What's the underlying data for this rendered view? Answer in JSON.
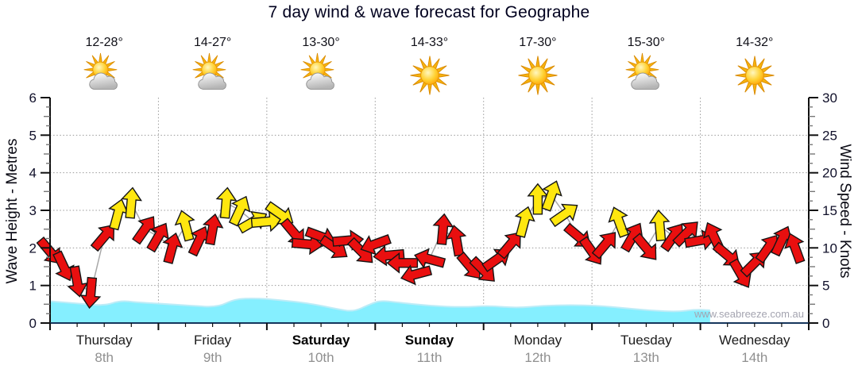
{
  "watermark": {
    "text": "www.seabreeze.com.au"
  },
  "colors": {
    "arrow_low": "#e90f0f",
    "arrow_high": "#ffe70f",
    "arrow_outline": "#151515",
    "wind_line": "#a8a8a8",
    "wave_fill": "#85efff",
    "wave_stroke": "#bdecf7",
    "grid": "#9a9a9a",
    "axis": "#101010",
    "axis_bottom": "#16365c",
    "tick_minor": "#777777",
    "tick_label": "#10102a"
  },
  "chart_data": {
    "type": "line",
    "title": "7 day wind & wave forecast for Geographe",
    "legend": "wind arrows colored by speed; cyan area is wave height",
    "y_left": {
      "label": "Wave Height - Metres",
      "min": 0,
      "max": 6,
      "major_tick": 1,
      "unit": "m"
    },
    "y_right": {
      "label": "Wind Speed - Knots",
      "min": 0,
      "max": 30,
      "major_tick": 5,
      "unit": "knots"
    },
    "days": [
      {
        "name": "Thursday",
        "date": "8th",
        "weekend": false,
        "temp": "12-28°",
        "icon": "sun-cloud"
      },
      {
        "name": "Friday",
        "date": "9th",
        "weekend": false,
        "temp": "14-27°",
        "icon": "sun-cloud"
      },
      {
        "name": "Saturday",
        "date": "10th",
        "weekend": true,
        "temp": "13-30°",
        "icon": "sun-cloud"
      },
      {
        "name": "Sunday",
        "date": "11th",
        "weekend": true,
        "temp": "14-33°",
        "icon": "sun"
      },
      {
        "name": "Monday",
        "date": "12th",
        "weekend": false,
        "temp": "17-30°",
        "icon": "sun"
      },
      {
        "name": "Tuesday",
        "date": "13th",
        "weekend": false,
        "temp": "15-30°",
        "icon": "sun-cloud"
      },
      {
        "name": "Wednesday",
        "date": "14th",
        "weekend": false,
        "temp": "14-32°",
        "icon": "sun"
      }
    ],
    "wind": {
      "note": "points are [day_fraction_t, knots, arrow_screen_direction_deg (0=up)]",
      "yellow_threshold_knots": 13,
      "points": [
        [
          0.0,
          9.5,
          140
        ],
        [
          0.125,
          7.5,
          155
        ],
        [
          0.25,
          5.5,
          170
        ],
        [
          0.375,
          4.0,
          185
        ],
        [
          0.5,
          11.5,
          40
        ],
        [
          0.625,
          14.5,
          15
        ],
        [
          0.75,
          16.0,
          5
        ],
        [
          0.875,
          12.5,
          35
        ],
        [
          1.0,
          11.5,
          30
        ],
        [
          1.125,
          10.0,
          15
        ],
        [
          1.25,
          13.0,
          345
        ],
        [
          1.375,
          11.0,
          25
        ],
        [
          1.5,
          12.5,
          10
        ],
        [
          1.625,
          16.0,
          5
        ],
        [
          1.75,
          15.0,
          25
        ],
        [
          1.875,
          13.5,
          60
        ],
        [
          2.0,
          13.5,
          85
        ],
        [
          2.125,
          14.5,
          125
        ],
        [
          2.25,
          12.0,
          140
        ],
        [
          2.375,
          10.5,
          95
        ],
        [
          2.5,
          11.5,
          110
        ],
        [
          2.625,
          10.0,
          125
        ],
        [
          2.75,
          11.0,
          85
        ],
        [
          2.875,
          9.5,
          135
        ],
        [
          3.0,
          10.5,
          250
        ],
        [
          3.125,
          9.0,
          265
        ],
        [
          3.25,
          8.0,
          270
        ],
        [
          3.375,
          6.5,
          255
        ],
        [
          3.5,
          8.5,
          285
        ],
        [
          3.625,
          12.5,
          5
        ],
        [
          3.75,
          11.0,
          350
        ],
        [
          3.875,
          7.5,
          140
        ],
        [
          4.0,
          7.0,
          135
        ],
        [
          4.125,
          8.5,
          55
        ],
        [
          4.25,
          10.5,
          40
        ],
        [
          4.375,
          13.5,
          15
        ],
        [
          4.5,
          16.5,
          0
        ],
        [
          4.625,
          17.0,
          20
        ],
        [
          4.75,
          14.5,
          55
        ],
        [
          4.875,
          11.5,
          130
        ],
        [
          5.0,
          9.5,
          145
        ],
        [
          5.125,
          10.5,
          40
        ],
        [
          5.25,
          13.5,
          340
        ],
        [
          5.375,
          11.5,
          30
        ],
        [
          5.5,
          10.0,
          140
        ],
        [
          5.625,
          13.0,
          355
        ],
        [
          5.75,
          11.5,
          35
        ],
        [
          5.875,
          12.0,
          45
        ],
        [
          6.0,
          11.0,
          80
        ],
        [
          6.125,
          11.5,
          335
        ],
        [
          6.25,
          9.0,
          130
        ],
        [
          6.375,
          6.5,
          150
        ],
        [
          6.5,
          8.0,
          45
        ],
        [
          6.625,
          10.0,
          35
        ],
        [
          6.75,
          11.0,
          25
        ],
        [
          6.875,
          10.0,
          340
        ]
      ]
    },
    "wave": {
      "note": "points are [day_fraction_t, metres]; series ends early at t=6.09",
      "ends_t": 6.09,
      "points": [
        [
          0.0,
          0.58
        ],
        [
          0.25,
          0.52
        ],
        [
          0.5,
          0.46
        ],
        [
          0.65,
          0.6
        ],
        [
          0.8,
          0.55
        ],
        [
          1.0,
          0.52
        ],
        [
          1.3,
          0.46
        ],
        [
          1.55,
          0.42
        ],
        [
          1.7,
          0.64
        ],
        [
          1.9,
          0.66
        ],
        [
          2.1,
          0.62
        ],
        [
          2.4,
          0.52
        ],
        [
          2.65,
          0.37
        ],
        [
          2.8,
          0.3
        ],
        [
          2.95,
          0.5
        ],
        [
          3.05,
          0.6
        ],
        [
          3.2,
          0.55
        ],
        [
          3.5,
          0.46
        ],
        [
          3.8,
          0.42
        ],
        [
          4.05,
          0.46
        ],
        [
          4.3,
          0.4
        ],
        [
          4.55,
          0.46
        ],
        [
          4.8,
          0.48
        ],
        [
          5.05,
          0.46
        ],
        [
          5.3,
          0.4
        ],
        [
          5.55,
          0.33
        ],
        [
          5.8,
          0.3
        ],
        [
          5.95,
          0.36
        ],
        [
          6.09,
          0.34
        ]
      ]
    }
  }
}
